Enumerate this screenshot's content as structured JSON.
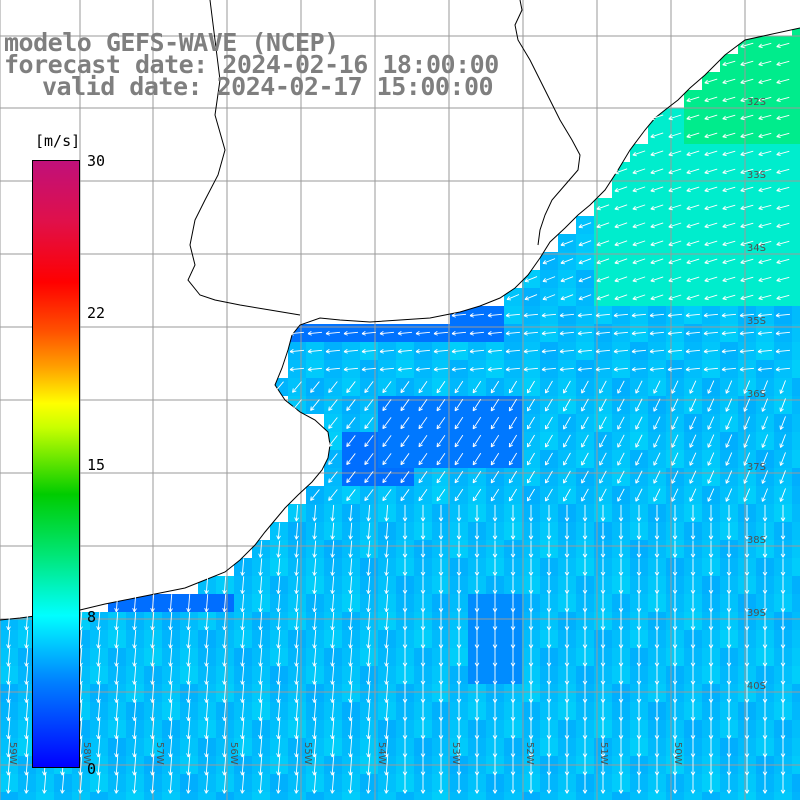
{
  "title": {
    "line1": "modelo GEFS-WAVE (NCEP)",
    "line2": "forecast date: 2024-02-16 18:00:00",
    "line3": "valid date: 2024-02-17 15:00:00"
  },
  "colorbar": {
    "unit": "[m/s]",
    "ticks": [
      "30",
      "22",
      "15",
      "8",
      "0"
    ],
    "tick_values": [
      30,
      22,
      15,
      8,
      0
    ],
    "range": [
      0,
      30
    ],
    "colors": [
      "#0000ff",
      "#0080ff",
      "#00ffff",
      "#00cc00",
      "#ffff00",
      "#ff0000",
      "#c0107a"
    ]
  },
  "map": {
    "lat_labels": [
      "32S",
      "33S",
      "34S",
      "35S",
      "36S",
      "37S",
      "38S",
      "39S",
      "40S"
    ],
    "lon_labels": [
      "59W",
      "58W",
      "57W",
      "56W",
      "55W",
      "54W",
      "53W",
      "52W",
      "51W",
      "50W"
    ],
    "land_color": "#ffffff",
    "coast_color": "#000000",
    "grid_color": "#9a9a9a",
    "arrow_color": "#ffffff",
    "field": "wind speed and direction"
  }
}
